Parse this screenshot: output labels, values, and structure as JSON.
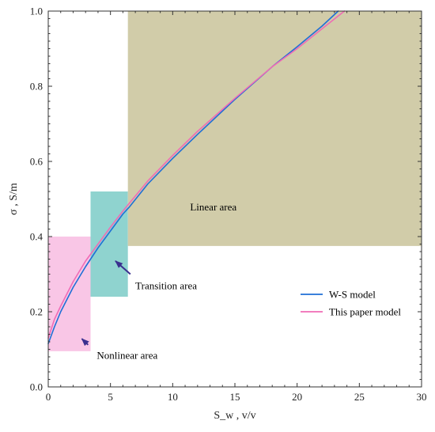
{
  "chart_data": {
    "type": "line",
    "xlabel": "S_w ,  v/v",
    "ylabel": "σ ,  S/m",
    "xlim": [
      0,
      30
    ],
    "ylim": [
      0,
      1.0
    ],
    "x_ticks": [
      0,
      5,
      10,
      15,
      20,
      25,
      30
    ],
    "y_ticks": [
      "0.0",
      "0.2",
      "0.4",
      "0.6",
      "0.8",
      "1.0"
    ],
    "grid": false,
    "legend_position": "bottom-right",
    "series": [
      {
        "name": "W-S model",
        "color": "#1f6fd6",
        "x": [
          0,
          0.5,
          1,
          2,
          3,
          4,
          5,
          6,
          6.5,
          8,
          10,
          12,
          15,
          18,
          20,
          22,
          23.3
        ],
        "y": [
          0.115,
          0.16,
          0.2,
          0.265,
          0.32,
          0.37,
          0.415,
          0.46,
          0.478,
          0.54,
          0.608,
          0.672,
          0.765,
          0.852,
          0.905,
          0.96,
          1.0
        ]
      },
      {
        "name": "This paper model",
        "color": "#f06bb5",
        "x": [
          0,
          0.5,
          1,
          2,
          3,
          4,
          5,
          6,
          6.5,
          8,
          10,
          12,
          15,
          18,
          20,
          22,
          23.8
        ],
        "y": [
          0.13,
          0.18,
          0.215,
          0.28,
          0.335,
          0.38,
          0.425,
          0.468,
          0.488,
          0.548,
          0.616,
          0.68,
          0.768,
          0.852,
          0.9,
          0.953,
          1.0
        ]
      }
    ],
    "regions": [
      {
        "name": "nonlinear",
        "label": "Nonlinear area",
        "color": "#f9c6e6",
        "x": [
          0,
          3.4
        ],
        "y": [
          0.095,
          0.4
        ]
      },
      {
        "name": "transition",
        "label": "Transition area",
        "color": "#8fd3cf",
        "x": [
          3.4,
          6.4
        ],
        "y": [
          0.24,
          0.52
        ]
      },
      {
        "name": "linear",
        "label": "Linear area",
        "color": "#d1cca9",
        "x": [
          6.4,
          30
        ],
        "y": [
          0.375,
          1.0
        ]
      }
    ],
    "annotations": {
      "transition": {
        "text": "Transition area",
        "text_at": [
          7.0,
          0.26
        ],
        "arrow_from": [
          6.6,
          0.3
        ],
        "arrow_to": [
          5.4,
          0.335
        ]
      },
      "nonlinear": {
        "text": "Nonlinear area",
        "text_at": [
          3.9,
          0.075
        ],
        "arrow_from": [
          3.2,
          0.112
        ],
        "arrow_to": [
          2.7,
          0.128
        ]
      },
      "linear": {
        "text": "Linear area",
        "text_at": [
          11.4,
          0.47
        ]
      }
    }
  }
}
